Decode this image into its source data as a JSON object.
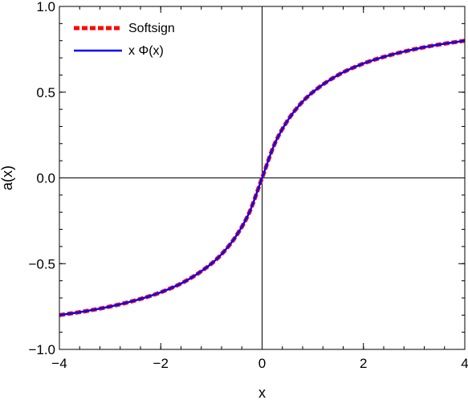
{
  "chart_data": {
    "type": "line",
    "xlabel": "x",
    "ylabel": "a(x)",
    "xlim": [
      -4,
      4
    ],
    "ylim": [
      -1.0,
      1.0
    ],
    "x_ticks": [
      -4,
      -2,
      0,
      2,
      4
    ],
    "x_tick_labels": [
      "−4",
      "−2",
      "0",
      "2",
      "4"
    ],
    "y_ticks": [
      -1.0,
      -0.5,
      0.0,
      0.5,
      1.0
    ],
    "y_tick_labels": [
      "−1.0",
      "−0.5",
      "0.0",
      "0.5",
      "1.0"
    ],
    "x_minor_step": 0.4,
    "y_minor_step": 0.1,
    "zero_lines": true,
    "legend_position": "top-left",
    "x": [
      -4,
      -3.5,
      -3,
      -2.5,
      -2,
      -1.5,
      -1,
      -0.75,
      -0.5,
      -0.25,
      0,
      0.25,
      0.5,
      0.75,
      1,
      1.5,
      2,
      2.5,
      3,
      3.5,
      4
    ],
    "series": [
      {
        "name": "Softsign",
        "color": "#ff0000",
        "style": "dashed",
        "values": [
          -0.8,
          -0.778,
          -0.75,
          -0.714,
          -0.667,
          -0.6,
          -0.5,
          -0.429,
          -0.333,
          -0.2,
          0,
          0.2,
          0.333,
          0.429,
          0.5,
          0.6,
          0.667,
          0.714,
          0.75,
          0.778,
          0.8
        ]
      },
      {
        "name": "x Φ(x)",
        "color": "#0000ff",
        "style": "solid",
        "values": [
          -0.8,
          -0.778,
          -0.75,
          -0.714,
          -0.667,
          -0.6,
          -0.5,
          -0.429,
          -0.333,
          -0.2,
          0,
          0.2,
          0.333,
          0.429,
          0.5,
          0.6,
          0.667,
          0.714,
          0.75,
          0.778,
          0.8
        ]
      }
    ]
  }
}
